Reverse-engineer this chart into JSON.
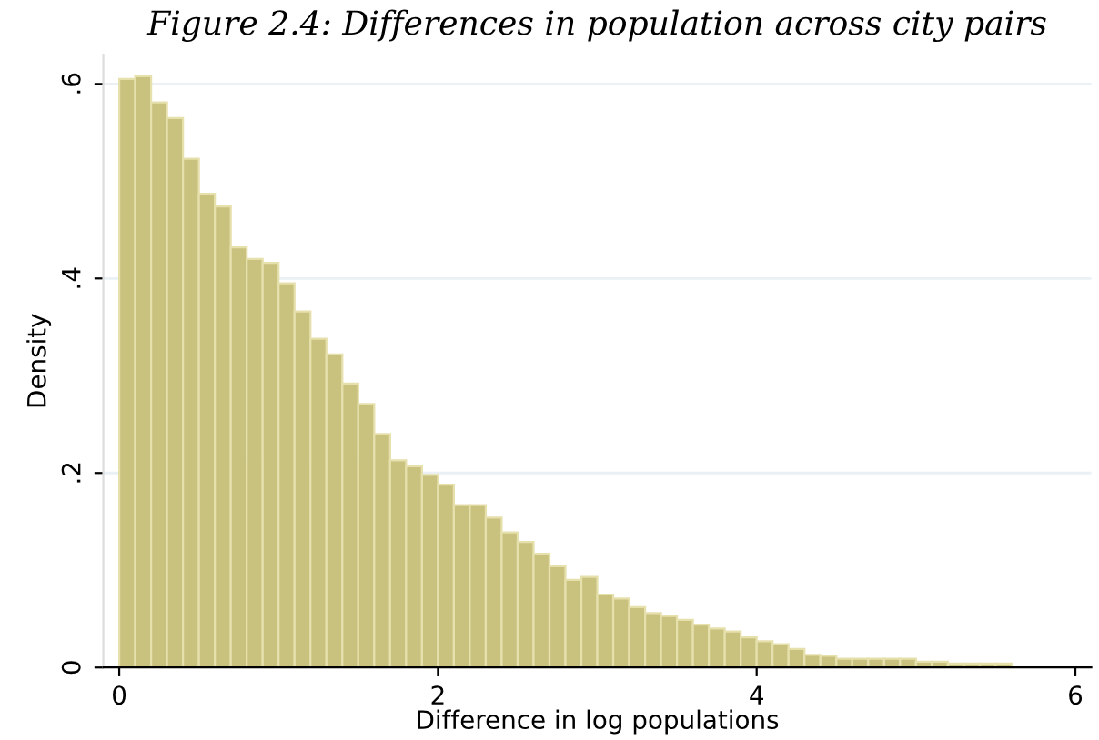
{
  "chart_data": {
    "type": "histogram",
    "title": "Figure 2.4: Differences in population across city pairs",
    "xlabel": "Difference in log populations",
    "ylabel": "Density",
    "bins": [
      0,
      0.1,
      0.2,
      0.3,
      0.4,
      0.5,
      0.6,
      0.7,
      0.8,
      0.9,
      1.0,
      1.1,
      1.2,
      1.3,
      1.4,
      1.5,
      1.6,
      1.7,
      1.8,
      1.9,
      2.0,
      2.1,
      2.2,
      2.3,
      2.4,
      2.5,
      2.6,
      2.7,
      2.8,
      2.9,
      3.0,
      3.1,
      3.2,
      3.3,
      3.4,
      3.5,
      3.6,
      3.7,
      3.8,
      3.9,
      4.0,
      4.1,
      4.2,
      4.3,
      4.4,
      4.5,
      4.6,
      4.7,
      4.8,
      4.9,
      5.0,
      5.1,
      5.2,
      5.3,
      5.4,
      5.5,
      5.6
    ],
    "values": [
      0.605,
      0.608,
      0.581,
      0.565,
      0.523,
      0.487,
      0.474,
      0.432,
      0.42,
      0.416,
      0.395,
      0.366,
      0.338,
      0.322,
      0.292,
      0.271,
      0.24,
      0.213,
      0.207,
      0.198,
      0.188,
      0.167,
      0.167,
      0.154,
      0.139,
      0.129,
      0.117,
      0.104,
      0.09,
      0.093,
      0.075,
      0.071,
      0.062,
      0.056,
      0.053,
      0.049,
      0.044,
      0.04,
      0.037,
      0.031,
      0.027,
      0.024,
      0.019,
      0.013,
      0.012,
      0.009,
      0.009,
      0.009,
      0.009,
      0.009,
      0.006,
      0.006,
      0.004,
      0.004,
      0.004,
      0.004
    ],
    "color": "#c9c27f",
    "xlim": [
      -0.1,
      6.1
    ],
    "ylim": [
      0,
      0.63
    ],
    "xticks": [
      0,
      2,
      4,
      6
    ],
    "yticks": [
      0,
      {
        "value": 0.2,
        "label": ".2"
      },
      {
        "value": 0.4,
        "label": ".4"
      },
      {
        "value": 0.6,
        "label": ".6"
      }
    ],
    "grid": "y"
  }
}
